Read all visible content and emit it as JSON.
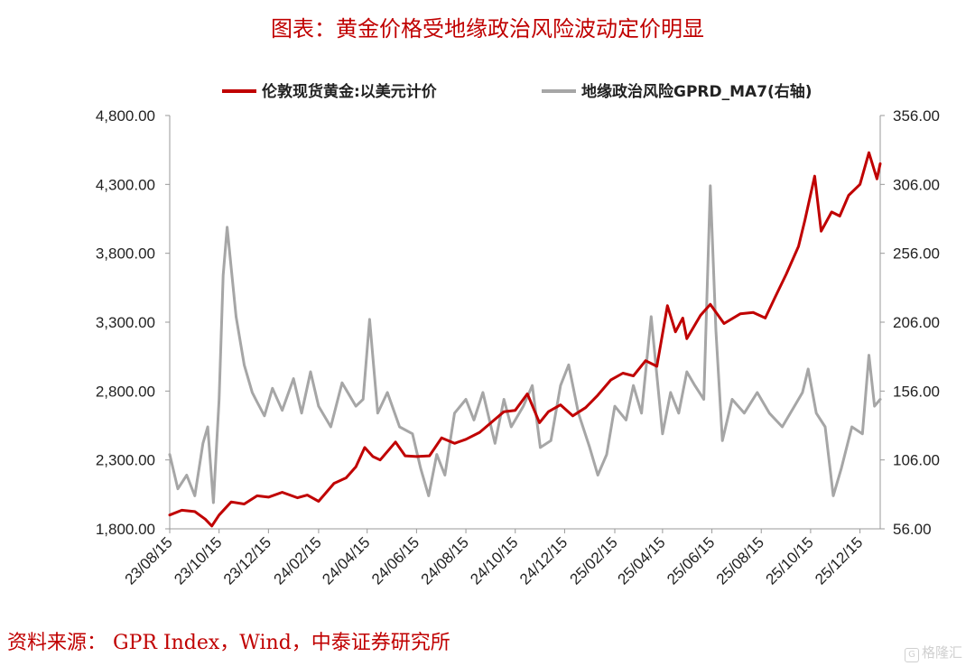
{
  "page": {
    "title": "图表：黄金价格受地缘政治风险波动定价明显",
    "source": "资料来源： GPR Index，Wind，中泰证券研究所",
    "watermark": "格隆汇"
  },
  "colors": {
    "gold": "#c00000",
    "gpr": "#a6a6a6",
    "title": "#c00000"
  },
  "chart_data": {
    "type": "line",
    "title": "图表：黄金价格受地缘政治风险波动定价明显",
    "x_start": "2023-08-15",
    "x_end": "2026-01-09",
    "x_tick_labels": [
      "23/08/15",
      "23/10/15",
      "23/12/15",
      "24/02/15",
      "24/04/15",
      "24/06/15",
      "24/08/15",
      "24/10/15",
      "24/12/15",
      "25/02/15",
      "25/04/15",
      "25/06/15",
      "25/08/15",
      "25/10/15",
      "25/12/15"
    ],
    "left_axis": {
      "min": 1800,
      "max": 4800,
      "ticks": [
        "1,800.00",
        "2,300.00",
        "2,800.00",
        "3,300.00",
        "3,800.00",
        "4,300.00",
        "4,800.00"
      ]
    },
    "right_axis": {
      "min": 56,
      "max": 356,
      "ticks": [
        "56.00",
        "106.00",
        "156.00",
        "206.00",
        "256.00",
        "306.00",
        "356.00"
      ]
    },
    "legend_position": "top",
    "series": [
      {
        "name": "伦敦现货黄金:以美元计价",
        "axis": "left",
        "points": [
          [
            "2023-08-15",
            1900
          ],
          [
            "2023-08-30",
            1935
          ],
          [
            "2023-09-15",
            1925
          ],
          [
            "2023-09-28",
            1870
          ],
          [
            "2023-10-06",
            1820
          ],
          [
            "2023-10-15",
            1900
          ],
          [
            "2023-10-30",
            1995
          ],
          [
            "2023-11-15",
            1980
          ],
          [
            "2023-12-01",
            2040
          ],
          [
            "2023-12-15",
            2030
          ],
          [
            "2024-01-01",
            2065
          ],
          [
            "2024-01-20",
            2025
          ],
          [
            "2024-02-01",
            2045
          ],
          [
            "2024-02-15",
            2000
          ],
          [
            "2024-03-05",
            2130
          ],
          [
            "2024-03-20",
            2170
          ],
          [
            "2024-04-01",
            2250
          ],
          [
            "2024-04-12",
            2390
          ],
          [
            "2024-04-22",
            2325
          ],
          [
            "2024-05-01",
            2300
          ],
          [
            "2024-05-20",
            2430
          ],
          [
            "2024-06-01",
            2330
          ],
          [
            "2024-06-15",
            2325
          ],
          [
            "2024-07-01",
            2330
          ],
          [
            "2024-07-16",
            2460
          ],
          [
            "2024-08-01",
            2420
          ],
          [
            "2024-08-15",
            2450
          ],
          [
            "2024-09-01",
            2500
          ],
          [
            "2024-09-15",
            2570
          ],
          [
            "2024-10-01",
            2650
          ],
          [
            "2024-10-15",
            2660
          ],
          [
            "2024-10-30",
            2780
          ],
          [
            "2024-11-14",
            2570
          ],
          [
            "2024-11-25",
            2650
          ],
          [
            "2024-12-10",
            2700
          ],
          [
            "2024-12-25",
            2620
          ],
          [
            "2025-01-10",
            2680
          ],
          [
            "2025-01-25",
            2770
          ],
          [
            "2025-02-10",
            2880
          ],
          [
            "2025-02-25",
            2930
          ],
          [
            "2025-03-10",
            2910
          ],
          [
            "2025-03-25",
            3020
          ],
          [
            "2025-04-08",
            2980
          ],
          [
            "2025-04-21",
            3420
          ],
          [
            "2025-05-01",
            3230
          ],
          [
            "2025-05-10",
            3330
          ],
          [
            "2025-05-15",
            3180
          ],
          [
            "2025-06-01",
            3350
          ],
          [
            "2025-06-13",
            3430
          ],
          [
            "2025-06-30",
            3290
          ],
          [
            "2025-07-20",
            3360
          ],
          [
            "2025-08-05",
            3370
          ],
          [
            "2025-08-20",
            3330
          ],
          [
            "2025-09-01",
            3480
          ],
          [
            "2025-09-15",
            3650
          ],
          [
            "2025-09-30",
            3850
          ],
          [
            "2025-10-08",
            4040
          ],
          [
            "2025-10-20",
            4360
          ],
          [
            "2025-10-28",
            3960
          ],
          [
            "2025-11-10",
            4100
          ],
          [
            "2025-11-20",
            4070
          ],
          [
            "2025-12-01",
            4220
          ],
          [
            "2025-12-15",
            4300
          ],
          [
            "2025-12-26",
            4530
          ],
          [
            "2026-01-05",
            4340
          ],
          [
            "2026-01-09",
            4450
          ]
        ]
      },
      {
        "name": "地缘政治风险GPRD_MA7(右轴)",
        "axis": "right",
        "points": [
          [
            "2023-08-15",
            110
          ],
          [
            "2023-08-25",
            85
          ],
          [
            "2023-09-05",
            95
          ],
          [
            "2023-09-15",
            80
          ],
          [
            "2023-09-25",
            118
          ],
          [
            "2023-10-01",
            130
          ],
          [
            "2023-10-08",
            75
          ],
          [
            "2023-10-15",
            150
          ],
          [
            "2023-10-20",
            240
          ],
          [
            "2023-10-25",
            275
          ],
          [
            "2023-11-05",
            210
          ],
          [
            "2023-11-15",
            175
          ],
          [
            "2023-11-25",
            155
          ],
          [
            "2023-12-01",
            148
          ],
          [
            "2023-12-10",
            138
          ],
          [
            "2023-12-20",
            158
          ],
          [
            "2024-01-01",
            142
          ],
          [
            "2024-01-15",
            165
          ],
          [
            "2024-01-25",
            140
          ],
          [
            "2024-02-05",
            170
          ],
          [
            "2024-02-15",
            145
          ],
          [
            "2024-03-01",
            130
          ],
          [
            "2024-03-15",
            162
          ],
          [
            "2024-04-01",
            145
          ],
          [
            "2024-04-10",
            150
          ],
          [
            "2024-04-18",
            208
          ],
          [
            "2024-04-28",
            140
          ],
          [
            "2024-05-10",
            155
          ],
          [
            "2024-05-25",
            130
          ],
          [
            "2024-06-10",
            125
          ],
          [
            "2024-06-20",
            100
          ],
          [
            "2024-06-30",
            80
          ],
          [
            "2024-07-10",
            110
          ],
          [
            "2024-07-20",
            95
          ],
          [
            "2024-08-01",
            140
          ],
          [
            "2024-08-15",
            150
          ],
          [
            "2024-08-25",
            135
          ],
          [
            "2024-09-05",
            155
          ],
          [
            "2024-09-20",
            118
          ],
          [
            "2024-10-01",
            150
          ],
          [
            "2024-10-10",
            130
          ],
          [
            "2024-10-25",
            145
          ],
          [
            "2024-11-05",
            160
          ],
          [
            "2024-11-15",
            115
          ],
          [
            "2024-11-28",
            120
          ],
          [
            "2024-12-10",
            160
          ],
          [
            "2024-12-20",
            175
          ],
          [
            "2025-01-01",
            140
          ],
          [
            "2025-01-15",
            115
          ],
          [
            "2025-01-25",
            95
          ],
          [
            "2025-02-05",
            110
          ],
          [
            "2025-02-15",
            145
          ],
          [
            "2025-03-01",
            135
          ],
          [
            "2025-03-10",
            160
          ],
          [
            "2025-03-20",
            140
          ],
          [
            "2025-04-01",
            210
          ],
          [
            "2025-04-15",
            125
          ],
          [
            "2025-04-25",
            155
          ],
          [
            "2025-05-05",
            140
          ],
          [
            "2025-05-15",
            170
          ],
          [
            "2025-05-25",
            160
          ],
          [
            "2025-06-05",
            150
          ],
          [
            "2025-06-13",
            305
          ],
          [
            "2025-06-20",
            200
          ],
          [
            "2025-06-28",
            120
          ],
          [
            "2025-07-10",
            150
          ],
          [
            "2025-07-25",
            140
          ],
          [
            "2025-08-10",
            155
          ],
          [
            "2025-08-25",
            140
          ],
          [
            "2025-09-10",
            130
          ],
          [
            "2025-09-25",
            145
          ],
          [
            "2025-10-05",
            155
          ],
          [
            "2025-10-12",
            172
          ],
          [
            "2025-10-22",
            140
          ],
          [
            "2025-11-02",
            130
          ],
          [
            "2025-11-12",
            80
          ],
          [
            "2025-11-22",
            100
          ],
          [
            "2025-12-05",
            130
          ],
          [
            "2025-12-18",
            125
          ],
          [
            "2025-12-26",
            182
          ],
          [
            "2026-01-02",
            145
          ],
          [
            "2026-01-09",
            150
          ]
        ]
      }
    ]
  }
}
